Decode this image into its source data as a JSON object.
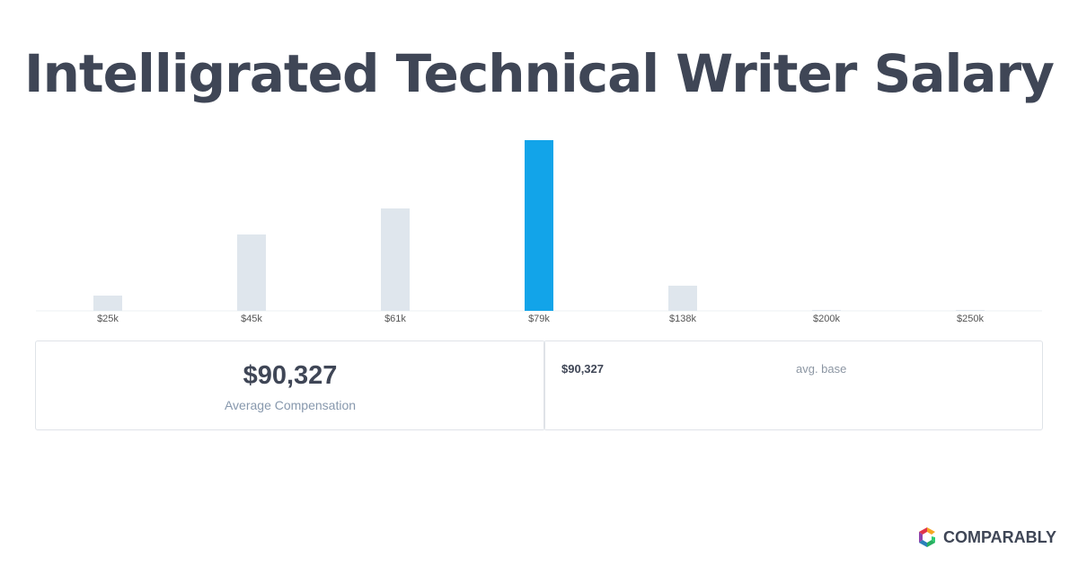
{
  "chart_data": {
    "type": "bar",
    "title": "Intelligrated Technical Writer Salary",
    "categories": [
      "$25k",
      "$45k",
      "$61k",
      "$79k",
      "$138k",
      "$200k",
      "$250k"
    ],
    "values": [
      17,
      85,
      114,
      190,
      28,
      1,
      1
    ],
    "colors": [
      "#dfe6ed",
      "#dfe6ed",
      "#dfe6ed",
      "#12a4e9",
      "#dfe6ed",
      "#dfe6ed",
      "#dfe6ed"
    ]
  },
  "summary": {
    "value": "$90,327",
    "label": "Average Compensation"
  },
  "breakdown": {
    "value": "$90,327",
    "label": "avg. base"
  },
  "brand": "COMPARABLY"
}
